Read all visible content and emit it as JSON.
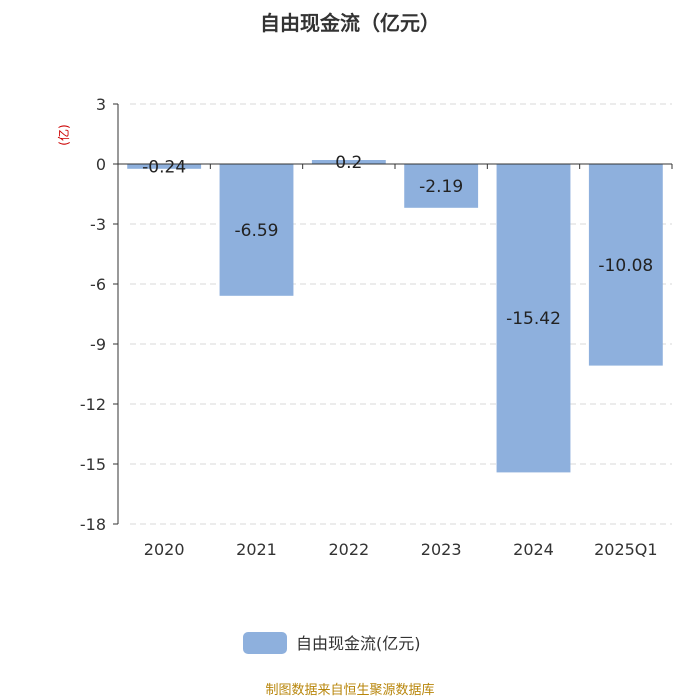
{
  "chart_data": {
    "type": "bar",
    "title": "自由现金流（亿元）",
    "unit_label": "(亿)",
    "categories": [
      "2020",
      "2021",
      "2022",
      "2023",
      "2024",
      "2025Q1"
    ],
    "series": [
      {
        "name": "自由现金流(亿元)",
        "values": [
          -0.24,
          -6.59,
          0.2,
          -2.19,
          -15.42,
          -10.08
        ],
        "color": "#8eb0dd"
      }
    ],
    "ylim": [
      -18,
      3
    ],
    "yticks": [
      3,
      0,
      -3,
      -6,
      -9,
      -12,
      -15,
      -18
    ],
    "grid": true,
    "legend_position": "bottom"
  },
  "source_note": "制图数据来自恒生聚源数据库"
}
